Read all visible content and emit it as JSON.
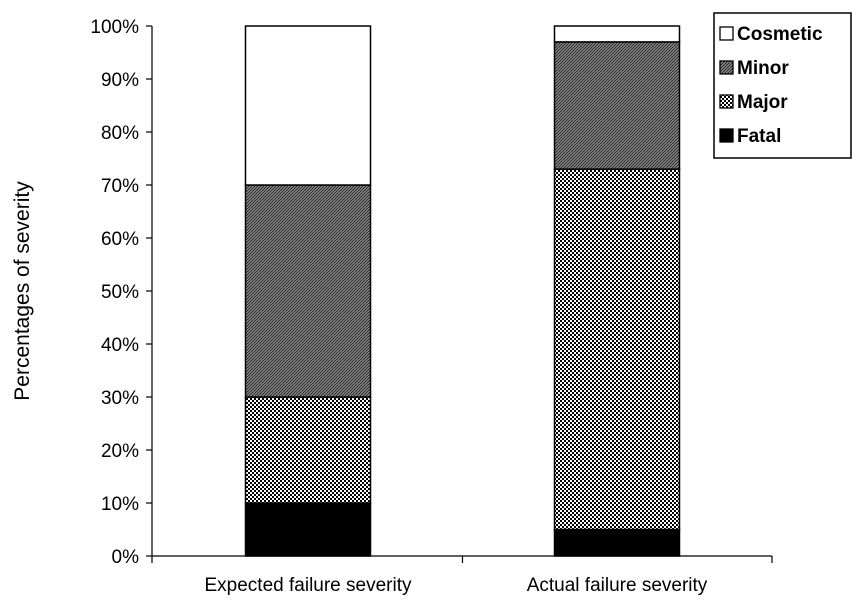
{
  "chart_data": {
    "type": "bar",
    "stacked": true,
    "percent": true,
    "title": "",
    "xlabel": "",
    "ylabel": "Percentages of severity",
    "ylim": [
      0,
      100
    ],
    "yticks": [
      "0%",
      "10%",
      "20%",
      "30%",
      "40%",
      "50%",
      "60%",
      "70%",
      "80%",
      "90%",
      "100%"
    ],
    "categories": [
      "Expected failure severity",
      "Actual failure severity"
    ],
    "series": [
      {
        "name": "Fatal",
        "values": [
          10,
          5
        ],
        "pattern": "solid",
        "color": "#000000"
      },
      {
        "name": "Major",
        "values": [
          20,
          68
        ],
        "pattern": "checker",
        "color": "#000000"
      },
      {
        "name": "Minor",
        "values": [
          40,
          24
        ],
        "pattern": "diagonal",
        "color": "#555555"
      },
      {
        "name": "Cosmetic",
        "values": [
          30,
          3
        ],
        "pattern": "empty",
        "color": "#ffffff"
      }
    ],
    "legend": {
      "position": "top-right",
      "order": [
        "Cosmetic",
        "Minor",
        "Major",
        "Fatal"
      ]
    },
    "grid": false
  }
}
